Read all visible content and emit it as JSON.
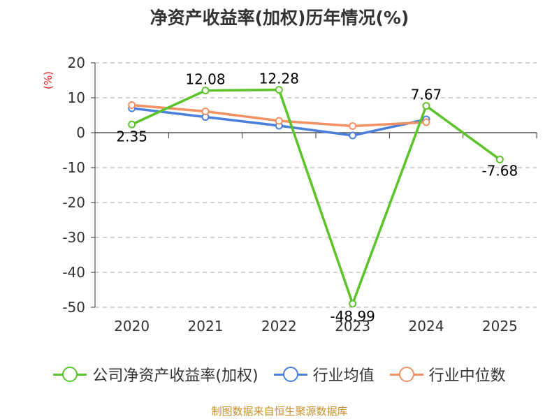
{
  "title": "净资产收益率(加权)历年情况(%)",
  "footer": "制图数据来自恒生聚源数据库",
  "colors": {
    "company": "#5cc32a",
    "industry_avg": "#4a7fdc",
    "industry_median": "#f29163",
    "grid": "#aaaaaa",
    "axis": "#333333",
    "unit_label": "#d91e18"
  },
  "legend": {
    "company": "公司净资产收益率(加权)",
    "industry_avg": "行业均值",
    "industry_median": "行业中位数"
  },
  "chart_data": {
    "type": "line",
    "title": "净资产收益率(加权)历年情况(%)",
    "ylabel": "(%)",
    "xlabel": "",
    "categories": [
      "2020",
      "2021",
      "2022",
      "2023",
      "2024",
      "2025"
    ],
    "ylim": [
      -50,
      20
    ],
    "yticks": [
      20,
      10,
      0,
      -10,
      -20,
      -30,
      -40,
      -50
    ],
    "grid": true,
    "series": [
      {
        "key": "company",
        "name": "公司净资产收益率(加权)",
        "values": [
          2.35,
          12.08,
          12.28,
          -48.99,
          7.67,
          -7.68
        ],
        "labels": [
          "2.35",
          "12.08",
          "12.28",
          "-48.99",
          "7.67",
          "-7.68"
        ]
      },
      {
        "key": "industry_avg",
        "name": "行业均值",
        "values": [
          7.0,
          4.5,
          2.0,
          -0.8,
          3.8,
          null
        ]
      },
      {
        "key": "industry_median",
        "name": "行业中位数",
        "values": [
          7.9,
          6.1,
          3.4,
          1.9,
          3.0,
          null
        ]
      }
    ]
  }
}
